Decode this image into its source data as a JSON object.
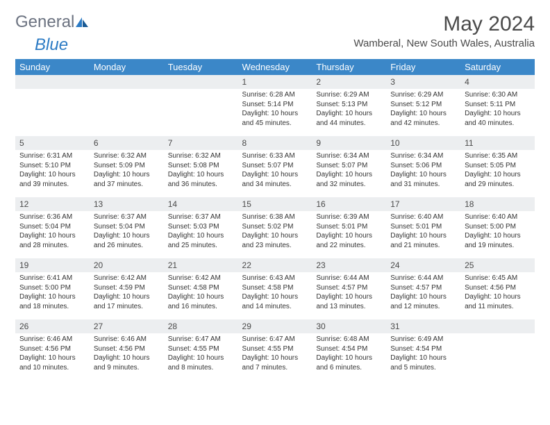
{
  "branding": {
    "logo_general": "General",
    "logo_blue": "Blue"
  },
  "header": {
    "month_title": "May 2024",
    "location": "Wamberal, New South Wales, Australia"
  },
  "colors": {
    "header_bg": "#3b87c8",
    "header_text": "#ffffff",
    "daynum_bg": "#eceef0",
    "text": "#4a4a4a",
    "logo_gray": "#6b7280",
    "logo_blue": "#2c7bc4"
  },
  "day_labels": [
    "Sunday",
    "Monday",
    "Tuesday",
    "Wednesday",
    "Thursday",
    "Friday",
    "Saturday"
  ],
  "weeks": [
    [
      {
        "num": "",
        "sunrise": "",
        "sunset": "",
        "daylight": ""
      },
      {
        "num": "",
        "sunrise": "",
        "sunset": "",
        "daylight": ""
      },
      {
        "num": "",
        "sunrise": "",
        "sunset": "",
        "daylight": ""
      },
      {
        "num": "1",
        "sunrise": "Sunrise: 6:28 AM",
        "sunset": "Sunset: 5:14 PM",
        "daylight": "Daylight: 10 hours and 45 minutes."
      },
      {
        "num": "2",
        "sunrise": "Sunrise: 6:29 AM",
        "sunset": "Sunset: 5:13 PM",
        "daylight": "Daylight: 10 hours and 44 minutes."
      },
      {
        "num": "3",
        "sunrise": "Sunrise: 6:29 AM",
        "sunset": "Sunset: 5:12 PM",
        "daylight": "Daylight: 10 hours and 42 minutes."
      },
      {
        "num": "4",
        "sunrise": "Sunrise: 6:30 AM",
        "sunset": "Sunset: 5:11 PM",
        "daylight": "Daylight: 10 hours and 40 minutes."
      }
    ],
    [
      {
        "num": "5",
        "sunrise": "Sunrise: 6:31 AM",
        "sunset": "Sunset: 5:10 PM",
        "daylight": "Daylight: 10 hours and 39 minutes."
      },
      {
        "num": "6",
        "sunrise": "Sunrise: 6:32 AM",
        "sunset": "Sunset: 5:09 PM",
        "daylight": "Daylight: 10 hours and 37 minutes."
      },
      {
        "num": "7",
        "sunrise": "Sunrise: 6:32 AM",
        "sunset": "Sunset: 5:08 PM",
        "daylight": "Daylight: 10 hours and 36 minutes."
      },
      {
        "num": "8",
        "sunrise": "Sunrise: 6:33 AM",
        "sunset": "Sunset: 5:07 PM",
        "daylight": "Daylight: 10 hours and 34 minutes."
      },
      {
        "num": "9",
        "sunrise": "Sunrise: 6:34 AM",
        "sunset": "Sunset: 5:07 PM",
        "daylight": "Daylight: 10 hours and 32 minutes."
      },
      {
        "num": "10",
        "sunrise": "Sunrise: 6:34 AM",
        "sunset": "Sunset: 5:06 PM",
        "daylight": "Daylight: 10 hours and 31 minutes."
      },
      {
        "num": "11",
        "sunrise": "Sunrise: 6:35 AM",
        "sunset": "Sunset: 5:05 PM",
        "daylight": "Daylight: 10 hours and 29 minutes."
      }
    ],
    [
      {
        "num": "12",
        "sunrise": "Sunrise: 6:36 AM",
        "sunset": "Sunset: 5:04 PM",
        "daylight": "Daylight: 10 hours and 28 minutes."
      },
      {
        "num": "13",
        "sunrise": "Sunrise: 6:37 AM",
        "sunset": "Sunset: 5:04 PM",
        "daylight": "Daylight: 10 hours and 26 minutes."
      },
      {
        "num": "14",
        "sunrise": "Sunrise: 6:37 AM",
        "sunset": "Sunset: 5:03 PM",
        "daylight": "Daylight: 10 hours and 25 minutes."
      },
      {
        "num": "15",
        "sunrise": "Sunrise: 6:38 AM",
        "sunset": "Sunset: 5:02 PM",
        "daylight": "Daylight: 10 hours and 23 minutes."
      },
      {
        "num": "16",
        "sunrise": "Sunrise: 6:39 AM",
        "sunset": "Sunset: 5:01 PM",
        "daylight": "Daylight: 10 hours and 22 minutes."
      },
      {
        "num": "17",
        "sunrise": "Sunrise: 6:40 AM",
        "sunset": "Sunset: 5:01 PM",
        "daylight": "Daylight: 10 hours and 21 minutes."
      },
      {
        "num": "18",
        "sunrise": "Sunrise: 6:40 AM",
        "sunset": "Sunset: 5:00 PM",
        "daylight": "Daylight: 10 hours and 19 minutes."
      }
    ],
    [
      {
        "num": "19",
        "sunrise": "Sunrise: 6:41 AM",
        "sunset": "Sunset: 5:00 PM",
        "daylight": "Daylight: 10 hours and 18 minutes."
      },
      {
        "num": "20",
        "sunrise": "Sunrise: 6:42 AM",
        "sunset": "Sunset: 4:59 PM",
        "daylight": "Daylight: 10 hours and 17 minutes."
      },
      {
        "num": "21",
        "sunrise": "Sunrise: 6:42 AM",
        "sunset": "Sunset: 4:58 PM",
        "daylight": "Daylight: 10 hours and 16 minutes."
      },
      {
        "num": "22",
        "sunrise": "Sunrise: 6:43 AM",
        "sunset": "Sunset: 4:58 PM",
        "daylight": "Daylight: 10 hours and 14 minutes."
      },
      {
        "num": "23",
        "sunrise": "Sunrise: 6:44 AM",
        "sunset": "Sunset: 4:57 PM",
        "daylight": "Daylight: 10 hours and 13 minutes."
      },
      {
        "num": "24",
        "sunrise": "Sunrise: 6:44 AM",
        "sunset": "Sunset: 4:57 PM",
        "daylight": "Daylight: 10 hours and 12 minutes."
      },
      {
        "num": "25",
        "sunrise": "Sunrise: 6:45 AM",
        "sunset": "Sunset: 4:56 PM",
        "daylight": "Daylight: 10 hours and 11 minutes."
      }
    ],
    [
      {
        "num": "26",
        "sunrise": "Sunrise: 6:46 AM",
        "sunset": "Sunset: 4:56 PM",
        "daylight": "Daylight: 10 hours and 10 minutes."
      },
      {
        "num": "27",
        "sunrise": "Sunrise: 6:46 AM",
        "sunset": "Sunset: 4:56 PM",
        "daylight": "Daylight: 10 hours and 9 minutes."
      },
      {
        "num": "28",
        "sunrise": "Sunrise: 6:47 AM",
        "sunset": "Sunset: 4:55 PM",
        "daylight": "Daylight: 10 hours and 8 minutes."
      },
      {
        "num": "29",
        "sunrise": "Sunrise: 6:47 AM",
        "sunset": "Sunset: 4:55 PM",
        "daylight": "Daylight: 10 hours and 7 minutes."
      },
      {
        "num": "30",
        "sunrise": "Sunrise: 6:48 AM",
        "sunset": "Sunset: 4:54 PM",
        "daylight": "Daylight: 10 hours and 6 minutes."
      },
      {
        "num": "31",
        "sunrise": "Sunrise: 6:49 AM",
        "sunset": "Sunset: 4:54 PM",
        "daylight": "Daylight: 10 hours and 5 minutes."
      },
      {
        "num": "",
        "sunrise": "",
        "sunset": "",
        "daylight": ""
      }
    ]
  ]
}
